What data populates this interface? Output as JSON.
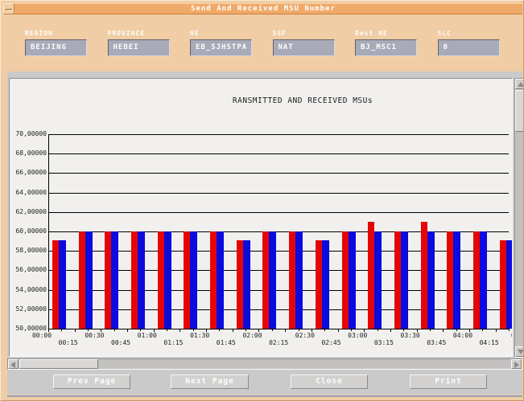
{
  "window": {
    "title": "Send And Received MSU Number"
  },
  "form": {
    "fields": [
      {
        "label": "REGION",
        "value": "BEIJING"
      },
      {
        "label": "PROVINCE",
        "value": "HEBEI"
      },
      {
        "label": "NE",
        "value": "EB_SJHSTPA"
      },
      {
        "label": "SSF",
        "value": "NAT"
      },
      {
        "label": "Dest NE",
        "value": "BJ_MSC1"
      },
      {
        "label": "SLC",
        "value": "0"
      }
    ]
  },
  "chart_data": {
    "type": "bar",
    "title": "RANSMITTED AND RECEIVED MSUs",
    "categories": [
      "00:00",
      "00:15",
      "00:30",
      "00:45",
      "01:00",
      "01:15",
      "01:30",
      "01:45",
      "02:00",
      "02:15",
      "02:30",
      "02:45",
      "03:00",
      "03:15",
      "03:30",
      "03:45",
      "04:00",
      "04:15"
    ],
    "series": [
      {
        "name": "transmitted",
        "color": "#e60505",
        "values": [
          59.1,
          60,
          60,
          60,
          60,
          60,
          60,
          59.1,
          60,
          60,
          59.1,
          60,
          61,
          60,
          61,
          60,
          60,
          59.1
        ]
      },
      {
        "name": "received",
        "color": "#0b0bdf",
        "values": [
          59.1,
          60,
          60,
          60,
          60,
          60,
          60,
          59.1,
          60,
          60,
          59.1,
          60,
          60,
          60,
          60,
          60,
          60,
          59.1
        ]
      }
    ],
    "ylim": [
      50,
      70
    ],
    "ytick_labels_top_to_bottom": [
      "70,00000",
      "68,00000",
      "66,00000",
      "64,00000",
      "62,00000",
      "60,00000",
      "58,00000",
      "56,00000",
      "54,00000",
      "52,00000",
      "50,00000"
    ],
    "partial_next_xlabel": "0",
    "grid": true,
    "legend": "none"
  },
  "buttons": [
    {
      "label": "Prev Page"
    },
    {
      "label": "Next Page"
    },
    {
      "label": "Close"
    },
    {
      "label": "Print"
    }
  ],
  "colors": {
    "window_bg": "#f0cda4",
    "titlebar": "#efa968",
    "field_bg": "#a9aab8",
    "client_bg": "#cbcaca",
    "chart_bg": "#f1f0ee",
    "bar_red": "#e60505",
    "bar_blue": "#0b0bdf"
  }
}
